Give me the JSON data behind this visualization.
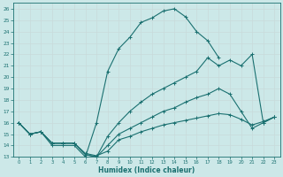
{
  "xlabel": "Humidex (Indice chaleur)",
  "bg_color": "#cce8e8",
  "line_color": "#1a7070",
  "grid_color": "#b0d4d4",
  "xlim": [
    -0.5,
    23.5
  ],
  "ylim": [
    13,
    26.5
  ],
  "yticks": [
    13,
    14,
    15,
    16,
    17,
    18,
    19,
    20,
    21,
    22,
    23,
    24,
    25,
    26
  ],
  "xticks": [
    0,
    1,
    2,
    3,
    4,
    5,
    6,
    7,
    8,
    9,
    10,
    11,
    12,
    13,
    14,
    15,
    16,
    17,
    18,
    19,
    20,
    21,
    22,
    23
  ],
  "line1_x": [
    0,
    1,
    2,
    3,
    4,
    5,
    6,
    7,
    8,
    9,
    10,
    11,
    12,
    13,
    14,
    15,
    16,
    17,
    18
  ],
  "line1_y": [
    16.0,
    15.0,
    15.2,
    14.0,
    14.0,
    14.0,
    13.0,
    16.0,
    20.5,
    22.5,
    23.5,
    24.8,
    25.2,
    25.8,
    26.0,
    25.3,
    24.0,
    23.2,
    21.7
  ],
  "line2_x": [
    0,
    1,
    2,
    3,
    4,
    5,
    6,
    7,
    8,
    9,
    10,
    11,
    12,
    13,
    14,
    15,
    16,
    17,
    18,
    19,
    20,
    21,
    22,
    23
  ],
  "line2_y": [
    16.0,
    15.0,
    15.2,
    14.2,
    14.2,
    14.2,
    13.2,
    13.0,
    14.8,
    16.0,
    17.0,
    17.8,
    18.5,
    19.0,
    19.5,
    20.0,
    20.5,
    21.7,
    21.0,
    21.5,
    21.0,
    22.0,
    16.0,
    16.5
  ],
  "line3_x": [
    0,
    1,
    2,
    3,
    4,
    5,
    6,
    7,
    8,
    9,
    10,
    11,
    12,
    13,
    14,
    15,
    16,
    17,
    18,
    19,
    20,
    21,
    22,
    23
  ],
  "line3_y": [
    16.0,
    15.0,
    15.2,
    14.2,
    14.2,
    14.2,
    13.2,
    13.0,
    14.0,
    15.0,
    15.5,
    16.0,
    16.5,
    17.0,
    17.3,
    17.8,
    18.2,
    18.5,
    19.0,
    18.5,
    17.0,
    15.5,
    16.0,
    16.5
  ],
  "line4_x": [
    0,
    1,
    2,
    3,
    4,
    5,
    6,
    7,
    8,
    9,
    10,
    11,
    12,
    13,
    14,
    15,
    16,
    17,
    18,
    19,
    20,
    21,
    22,
    23
  ],
  "line4_y": [
    16.0,
    15.0,
    15.2,
    14.2,
    14.2,
    14.2,
    13.3,
    13.1,
    13.5,
    14.5,
    14.8,
    15.2,
    15.5,
    15.8,
    16.0,
    16.2,
    16.4,
    16.6,
    16.8,
    16.7,
    16.3,
    15.8,
    16.1,
    16.5
  ]
}
